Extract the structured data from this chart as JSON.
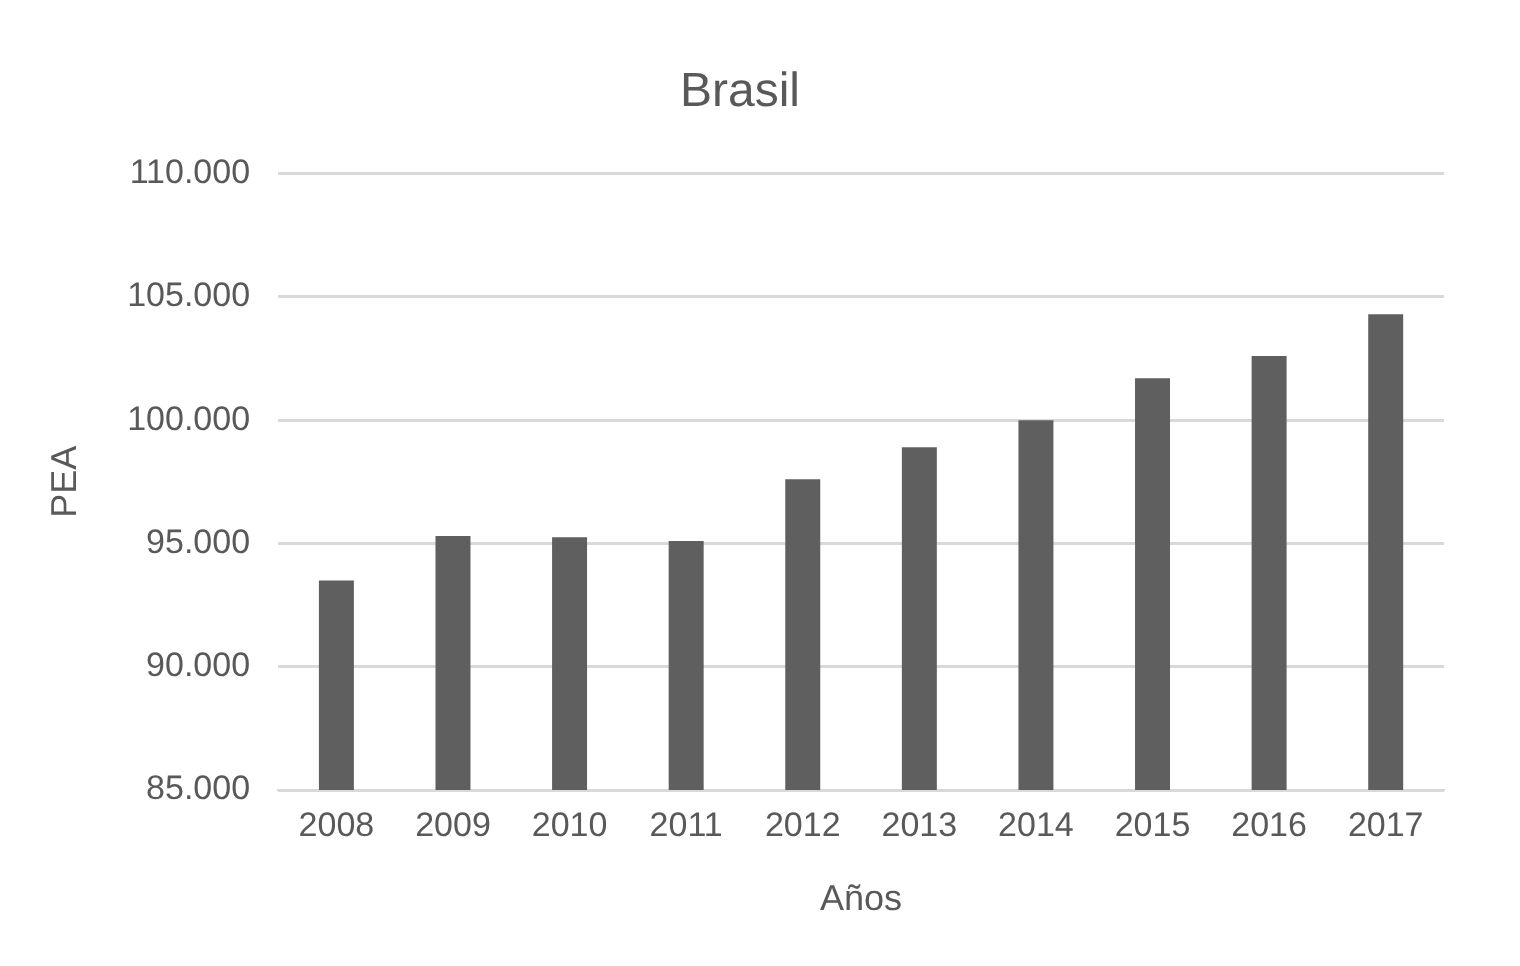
{
  "chart_data": {
    "type": "bar",
    "title": "Brasil",
    "xlabel": "Años",
    "ylabel": "PEA",
    "categories": [
      "2008",
      "2009",
      "2010",
      "2011",
      "2012",
      "2013",
      "2014",
      "2015",
      "2016",
      "2017"
    ],
    "values": [
      93500,
      95300,
      95250,
      95100,
      97600,
      98900,
      100000,
      101700,
      102600,
      104300
    ],
    "color": "#5f5f5f",
    "ylim": [
      85000,
      110000
    ],
    "yticks": [
      {
        "value": 85000,
        "label": "85.000"
      },
      {
        "value": 90000,
        "label": "90.000"
      },
      {
        "value": 95000,
        "label": "95.000"
      },
      {
        "value": 100000,
        "label": "100.000"
      },
      {
        "value": 105000,
        "label": "105.000"
      },
      {
        "value": 110000,
        "label": "110.000"
      }
    ],
    "grid": "y",
    "legend": false
  }
}
